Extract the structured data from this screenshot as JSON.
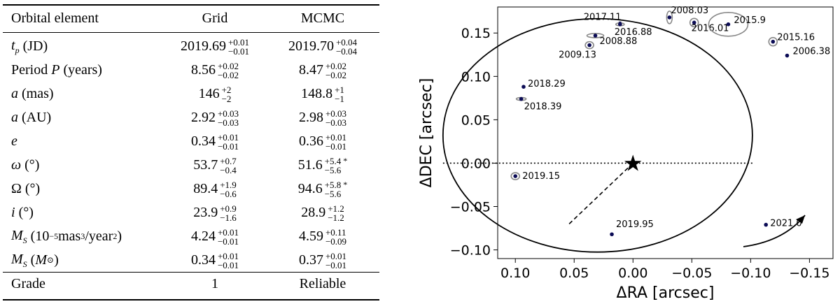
{
  "table": {
    "headers": [
      "Orbital element",
      "Grid",
      "MCMC"
    ],
    "rows": [
      {
        "label": "t_p (JD)",
        "grid": {
          "value": "2019.69",
          "plus": "+0.01",
          "minus": "−0.01"
        },
        "mcmc": {
          "value": "2019.70",
          "plus": "+0.04",
          "minus": "−0.04"
        }
      },
      {
        "label": "Period P (years)",
        "grid": {
          "value": "8.56",
          "plus": "+0.02",
          "minus": "−0.02"
        },
        "mcmc": {
          "value": "8.47",
          "plus": "+0.02",
          "minus": "−0.02"
        }
      },
      {
        "label": "a (mas)",
        "grid": {
          "value": "146",
          "plus": "+2",
          "minus": "−2"
        },
        "mcmc": {
          "value": "148.8",
          "plus": "+1",
          "minus": "−1"
        }
      },
      {
        "label": "a (AU)",
        "grid": {
          "value": "2.92",
          "plus": "+0.03",
          "minus": "−0.03"
        },
        "mcmc": {
          "value": "2.98",
          "plus": "+0.03",
          "minus": "−0.03"
        }
      },
      {
        "label": "e",
        "grid": {
          "value": "0.34",
          "plus": "+0.01",
          "minus": "−0.01"
        },
        "mcmc": {
          "value": "0.36",
          "plus": "+0.01",
          "minus": "−0.01"
        }
      },
      {
        "label": "ω (°)",
        "grid": {
          "value": "53.7",
          "plus": "+0.7",
          "minus": "−0.4"
        },
        "mcmc": {
          "value": "51.6",
          "plus": "+5.4",
          "minus": "−5.6",
          "mark": "*"
        }
      },
      {
        "label": "Ω (°)",
        "grid": {
          "value": "89.4",
          "plus": "+1.9",
          "minus": "−0.6"
        },
        "mcmc": {
          "value": "94.6",
          "plus": "+5.8",
          "minus": "−5.6",
          "mark": "*"
        }
      },
      {
        "label": "i (°)",
        "grid": {
          "value": "23.9",
          "plus": "+0.9",
          "minus": "−1.6"
        },
        "mcmc": {
          "value": "28.9",
          "plus": "+1.2",
          "minus": "−1.2"
        }
      },
      {
        "label": "M_S (10^−5 mas^3/year^2)",
        "grid": {
          "value": "4.24",
          "plus": "+0.01",
          "minus": "−0.01"
        },
        "mcmc": {
          "value": "4.59",
          "plus": "+0.11",
          "minus": "−0.09"
        }
      },
      {
        "label": "M_S (M_⊙)",
        "grid": {
          "value": "0.34",
          "plus": "+0.01",
          "minus": "−0.01"
        },
        "mcmc": {
          "value": "0.37",
          "plus": "+0.01",
          "minus": "−0.01"
        }
      }
    ],
    "footer": {
      "label": "Grade",
      "grid": "1",
      "mcmc": "Reliable"
    }
  },
  "chart_data": {
    "type": "scatter",
    "title": "",
    "xlabel": "ΔRA [arcsec]",
    "ylabel": "ΔDEC [arcsec]",
    "xlim": [
      0.115,
      -0.17
    ],
    "ylim": [
      -0.11,
      0.18
    ],
    "xticks": [
      0.1,
      0.05,
      0.0,
      -0.05,
      -0.1,
      -0.15
    ],
    "xtick_labels": [
      "0.10",
      "0.05",
      "0.00",
      "−0.05",
      "−0.10",
      "−0.15"
    ],
    "yticks": [
      0.15,
      0.1,
      0.05,
      0.0,
      -0.05,
      -0.1
    ],
    "ytick_labels": [
      "0.15",
      "0.10",
      "0.05",
      "0.00",
      "−0.05",
      "−0.10"
    ],
    "star": {
      "x": 0.0,
      "y": 0.0,
      "label": "★"
    },
    "orbit_ellipse": {
      "cx": 0.03,
      "cy": 0.032,
      "rx": 0.1315,
      "ry": 0.1345
    },
    "points": [
      {
        "epoch": "2017.11",
        "x": 0.011,
        "y": 0.161
      },
      {
        "epoch": "2008.03",
        "x": -0.031,
        "y": 0.168
      },
      {
        "epoch": "2016.01",
        "x": -0.052,
        "y": 0.162
      },
      {
        "epoch": "2015.9",
        "x": -0.081,
        "y": 0.16
      },
      {
        "epoch": "2016.88",
        "x": 0.011,
        "y": 0.16
      },
      {
        "epoch": "2008.88",
        "x": 0.032,
        "y": 0.147
      },
      {
        "epoch": "2009.13",
        "x": 0.037,
        "y": 0.136
      },
      {
        "epoch": "2015.16",
        "x": -0.119,
        "y": 0.14
      },
      {
        "epoch": "2006.38",
        "x": -0.131,
        "y": 0.124
      },
      {
        "epoch": "2018.29",
        "x": 0.093,
        "y": 0.088
      },
      {
        "epoch": "2018.39",
        "x": 0.095,
        "y": 0.074
      },
      {
        "epoch": "2019.15",
        "x": 0.1,
        "y": -0.015
      },
      {
        "epoch": "2019.95",
        "x": 0.018,
        "y": -0.082
      },
      {
        "epoch": "2021.0",
        "x": -0.113,
        "y": -0.071
      }
    ],
    "line_of_nodes": {
      "style": "dotted",
      "y": 0.0
    },
    "periastron_line": {
      "style": "dashed",
      "from": [
        0.0,
        0.0
      ],
      "to": [
        0.055,
        -0.071
      ]
    },
    "direction_arrow": "counter-clockwise"
  }
}
